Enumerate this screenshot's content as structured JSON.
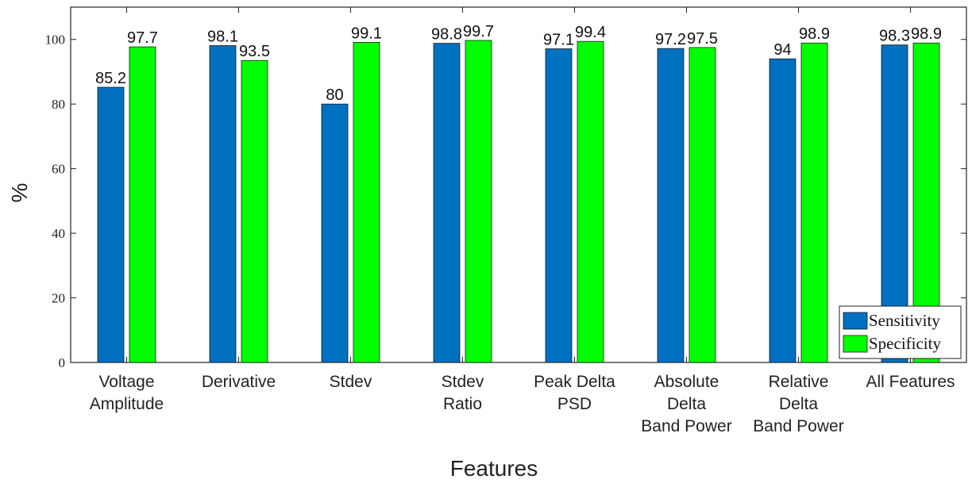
{
  "chart_data": {
    "type": "bar",
    "categories": [
      [
        "Voltage",
        "Amplitude"
      ],
      [
        "Derivative"
      ],
      [
        "Stdev"
      ],
      [
        "Stdev",
        "Ratio"
      ],
      [
        "Peak Delta",
        "PSD"
      ],
      [
        "Absolute",
        "Delta",
        "Band Power"
      ],
      [
        "Relative",
        "Delta",
        "Band Power"
      ],
      [
        "All Features"
      ]
    ],
    "series": [
      {
        "name": "Sensitivity",
        "color": "#0070c0",
        "values": [
          85.2,
          98.1,
          80,
          98.8,
          97.1,
          97.2,
          94,
          98.3
        ]
      },
      {
        "name": "Specificity",
        "color": "#00ff00",
        "values": [
          97.7,
          93.5,
          99.1,
          99.7,
          99.4,
          97.5,
          98.9,
          98.9
        ]
      }
    ],
    "title": "",
    "xlabel": "Features",
    "ylabel": "%",
    "ylim": [
      0,
      110
    ],
    "yticks": [
      0,
      20,
      40,
      60,
      80,
      100
    ],
    "grid": false,
    "legend_position": "bottom-right"
  }
}
